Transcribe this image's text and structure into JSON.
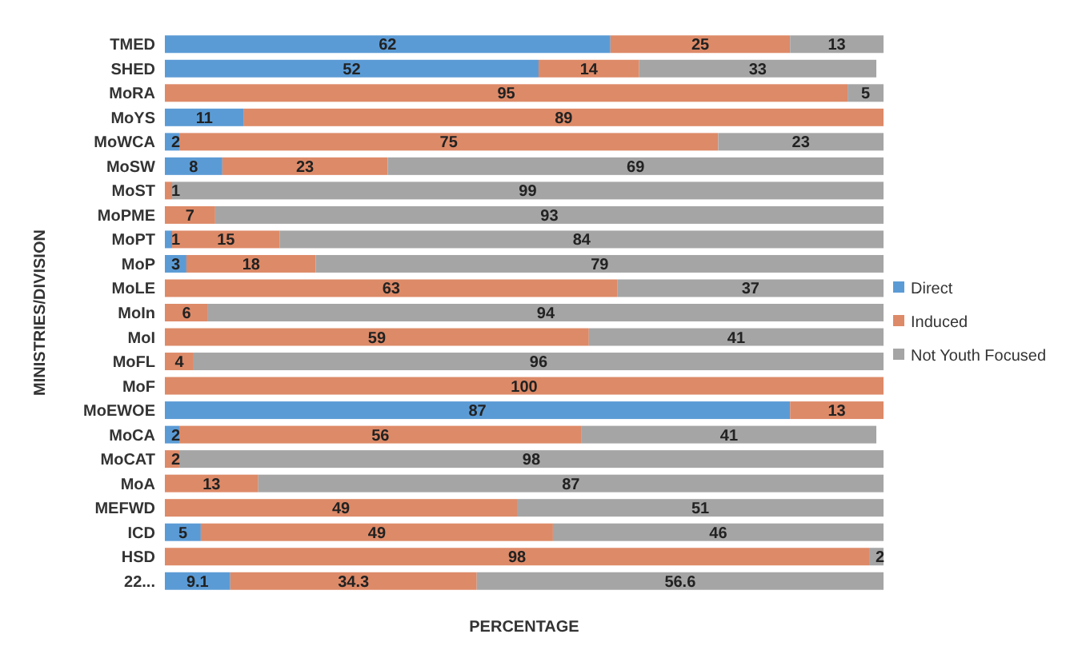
{
  "chart_data": {
    "type": "bar",
    "orientation": "horizontal",
    "stacked": true,
    "xlabel": "PERCENTAGE",
    "ylabel": "MINISTRIES/DIVISION",
    "categories": [
      "TMED",
      "SHED",
      "MoRA",
      "MoYS",
      "MoWCA",
      "MoSW",
      "MoST",
      "MoPME",
      "MoPT",
      "MoP",
      "MoLE",
      "MoIn",
      "MoI",
      "MoFL",
      "MoF",
      "MoEWOE",
      "MoCA",
      "MoCAT",
      "MoA",
      "MEFWD",
      "ICD",
      "HSD",
      "22..."
    ],
    "series": [
      {
        "name": "Direct",
        "color": "#5b9bd5",
        "values": [
          62,
          52,
          null,
          11,
          2,
          8,
          null,
          null,
          1,
          3,
          null,
          null,
          null,
          null,
          null,
          87,
          2,
          null,
          null,
          null,
          5,
          null,
          9.1
        ]
      },
      {
        "name": "Induced",
        "color": "#dd8a68",
        "values": [
          25,
          14,
          95,
          89,
          75,
          23,
          1,
          7,
          15,
          18,
          63,
          6,
          59,
          4,
          100,
          13,
          56,
          2,
          13,
          49,
          49,
          98,
          34.3
        ]
      },
      {
        "name": "Not Youth Focused",
        "color": "#a5a5a5",
        "values": [
          13,
          33,
          5,
          null,
          23,
          69,
          99,
          93,
          84,
          79,
          37,
          94,
          41,
          96,
          null,
          null,
          41,
          98,
          87,
          51,
          46,
          2,
          56.6
        ]
      }
    ],
    "xlim": [
      0,
      100
    ],
    "tick_labels": "y",
    "data_labels": true,
    "legend": "right"
  }
}
